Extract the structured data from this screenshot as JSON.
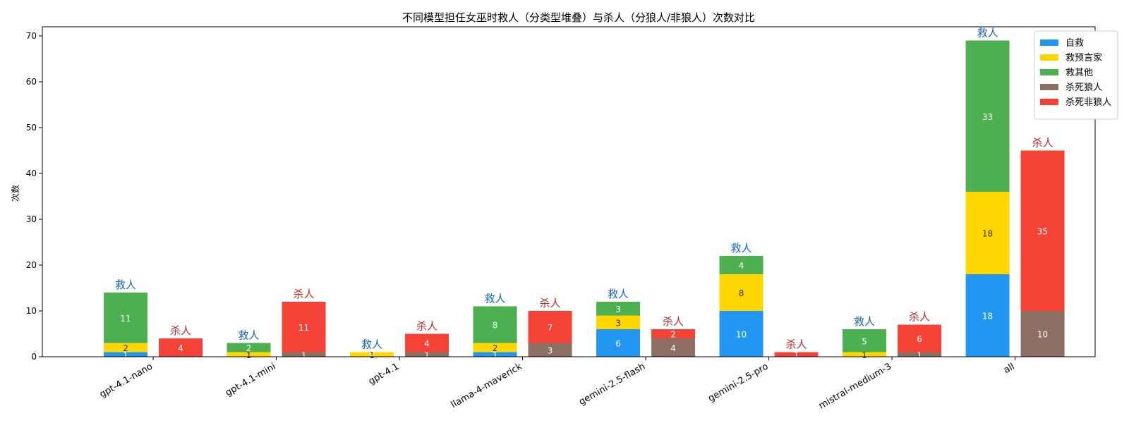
{
  "chart_data": {
    "type": "bar",
    "title": "不同模型担任女巫时救人（分类型堆叠）与杀人（分狼人/非狼人）次数对比",
    "ylabel": "次数",
    "xlabel": "",
    "ylim": [
      0,
      72
    ],
    "yticks": [
      0,
      10,
      20,
      30,
      40,
      50,
      60,
      70
    ],
    "categories": [
      "gpt-4.1-nano",
      "gpt-4.1-mini",
      "gpt-4.1",
      "llama-4-maverick",
      "gemini-2.5-flash",
      "gemini-2.5-pro",
      "mistral-medium-3",
      "all"
    ],
    "save_label": "救人",
    "kill_label": "杀人",
    "save_series": [
      {
        "name": "自救",
        "color": "#2196F3",
        "values": [
          1,
          0,
          0,
          1,
          6,
          10,
          0,
          18
        ]
      },
      {
        "name": "救预言家",
        "color": "#FFD600",
        "values": [
          2,
          1,
          1,
          2,
          3,
          8,
          1,
          18
        ]
      },
      {
        "name": "救其他",
        "color": "#4CAF50",
        "values": [
          11,
          2,
          0,
          8,
          3,
          4,
          5,
          33
        ]
      }
    ],
    "kill_series": [
      {
        "name": "杀死狼人",
        "color": "#8D6E63",
        "values": [
          0,
          1,
          1,
          3,
          4,
          0,
          1,
          10
        ]
      },
      {
        "name": "杀死非狼人",
        "color": "#F44336",
        "values": [
          4,
          11,
          4,
          7,
          2,
          1,
          6,
          35
        ]
      }
    ],
    "legend": [
      "自救",
      "救预言家",
      "救其他",
      "杀死狼人",
      "杀死非狼人"
    ],
    "legend_position": "top-right",
    "save_label_color": "#1565C0",
    "kill_label_color": "#C62828",
    "grid": false
  }
}
